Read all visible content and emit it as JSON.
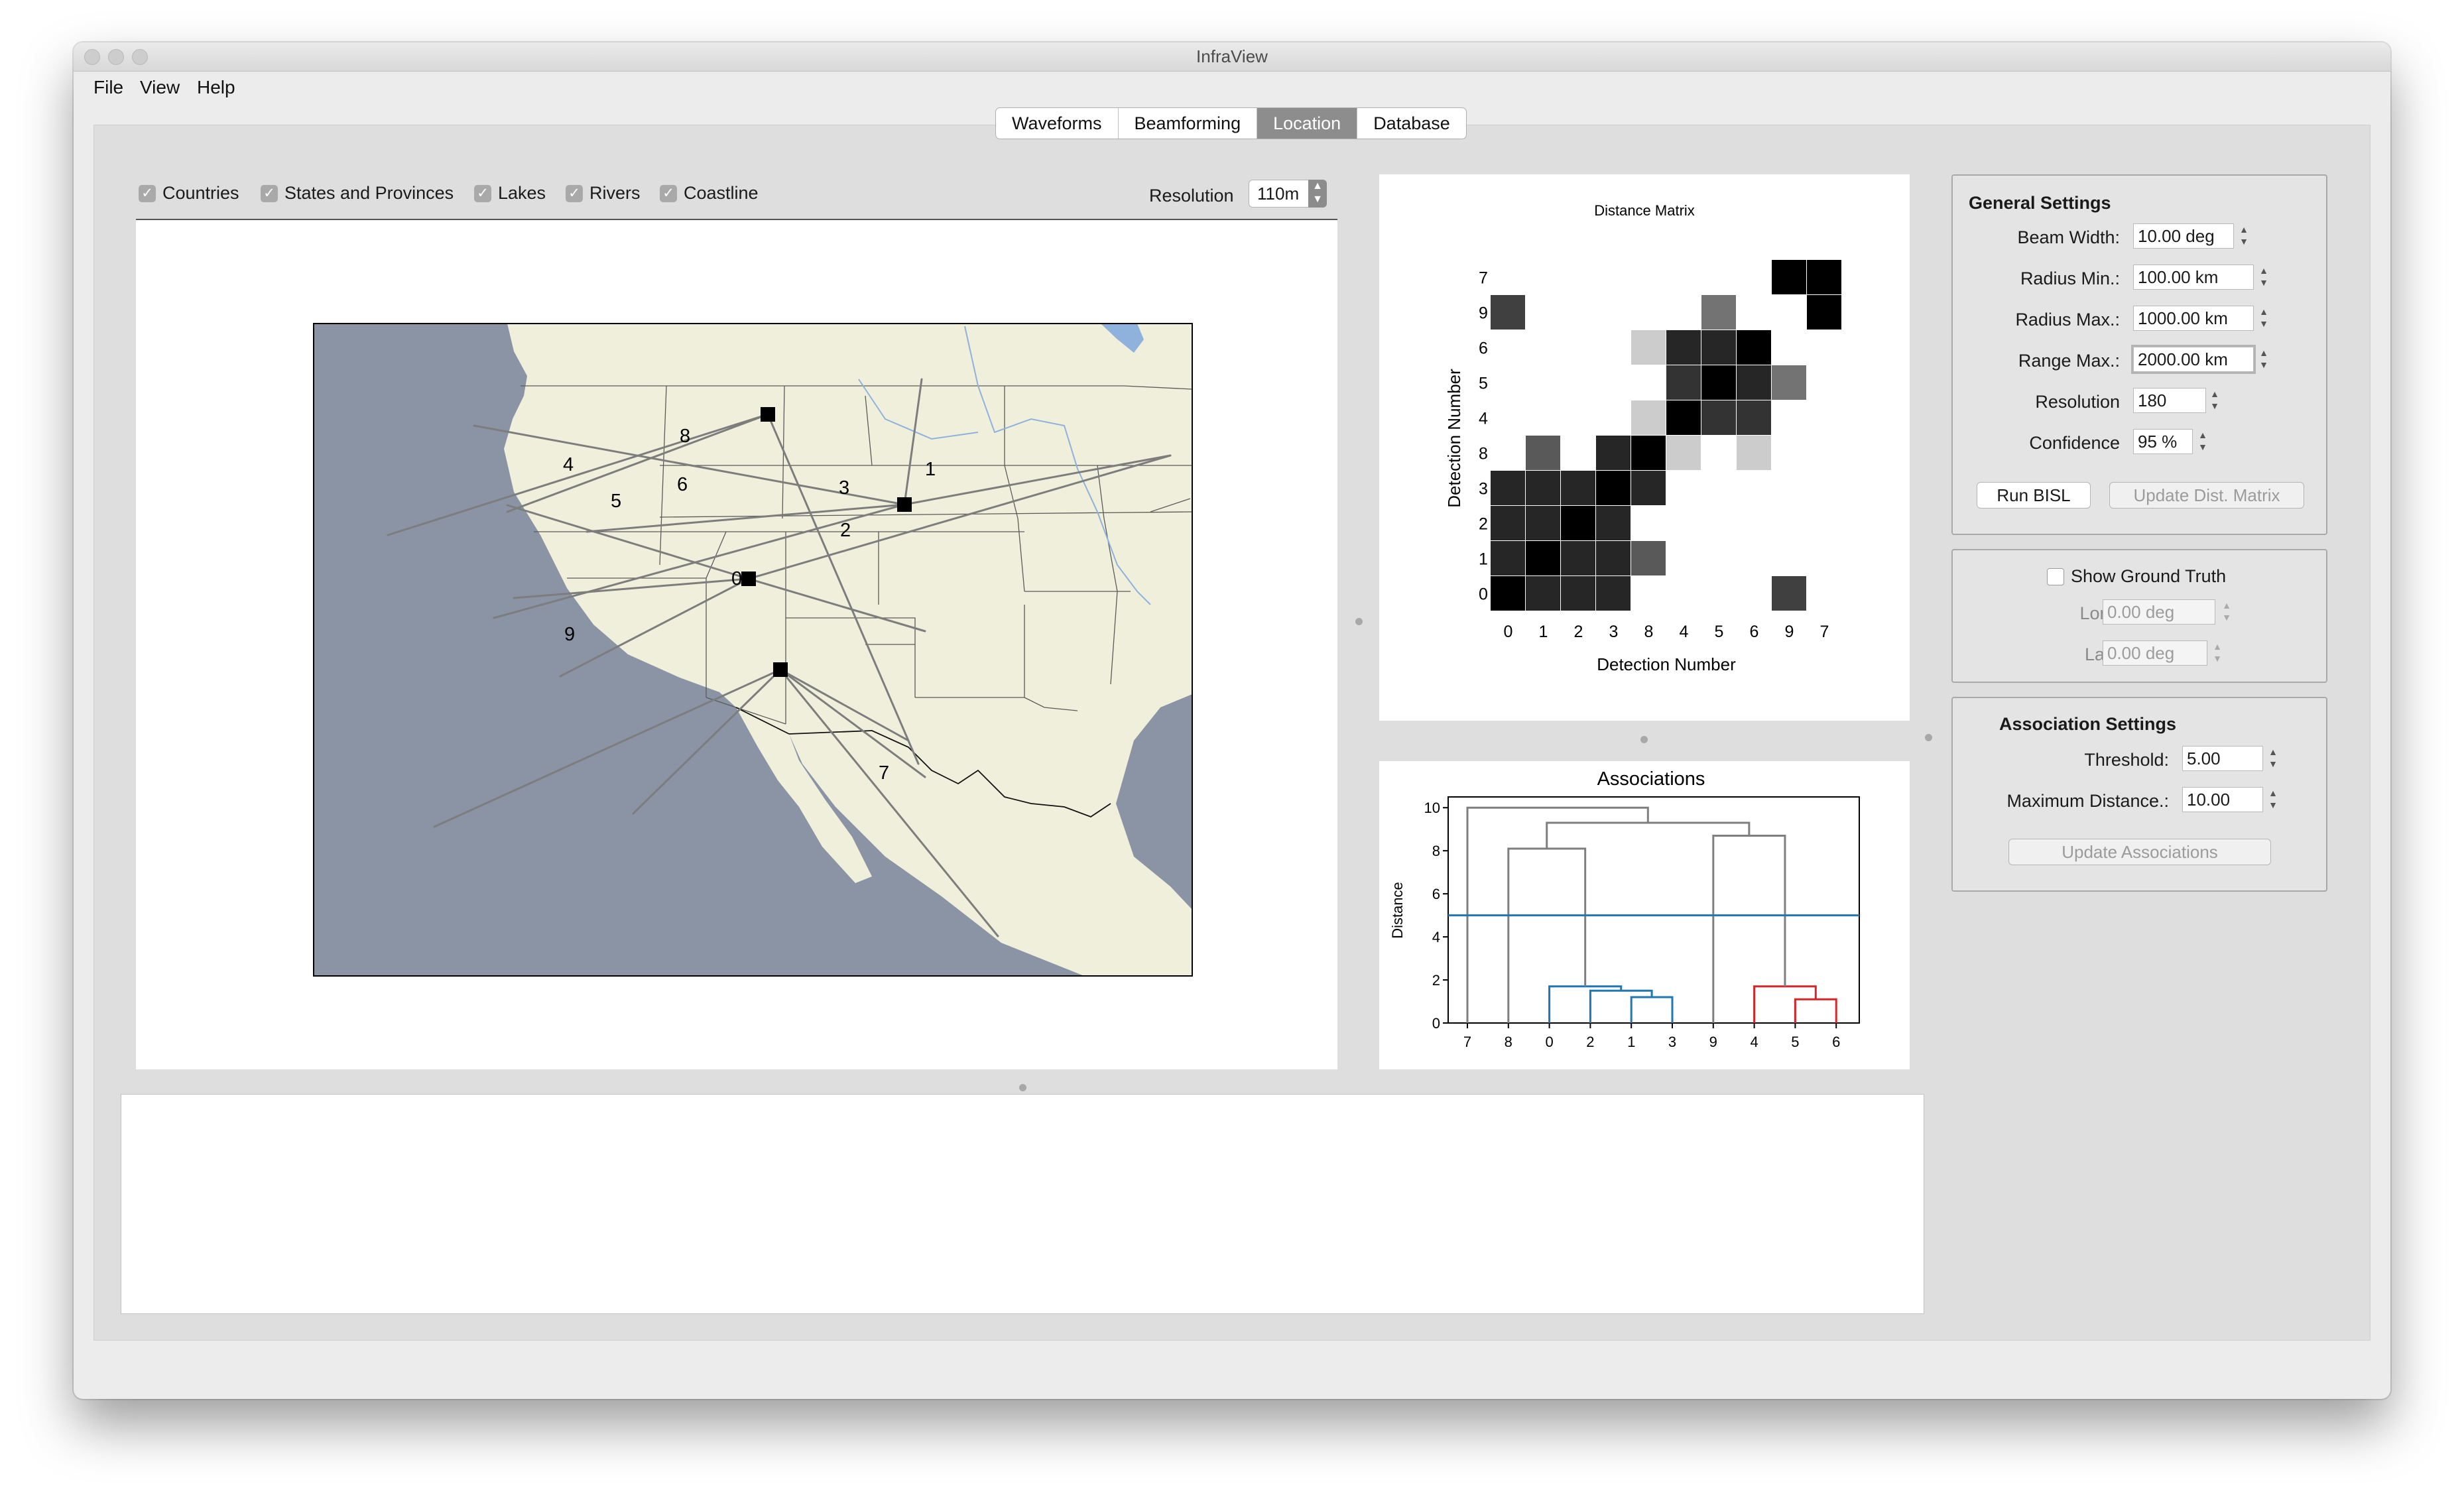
{
  "window": {
    "title": "InfraView"
  },
  "menu": [
    "File",
    "View",
    "Help"
  ],
  "tabs": [
    {
      "label": "Waveforms",
      "active": false
    },
    {
      "label": "Beamforming",
      "active": false
    },
    {
      "label": "Location",
      "active": true
    },
    {
      "label": "Database",
      "active": false
    }
  ],
  "map_toolbar": {
    "layers": [
      {
        "label": "Countries",
        "checked": true
      },
      {
        "label": "States and Provinces",
        "checked": true
      },
      {
        "label": "Lakes",
        "checked": true
      },
      {
        "label": "Rivers",
        "checked": true
      },
      {
        "label": "Coastline",
        "checked": true
      }
    ],
    "resolution_label": "Resolution",
    "resolution_value": "110m"
  },
  "map": {
    "land_color": "#efefdc",
    "ocean_color": "#8a94a4",
    "ray_color": "#7d7d7d",
    "detection_labels": [
      "1",
      "2",
      "3",
      "4",
      "5",
      "6",
      "7",
      "8",
      "9",
      "0"
    ]
  },
  "distance_matrix": {
    "title": "Distance Matrix",
    "xlabel": "Detection Number",
    "ylabel": "Detection Number",
    "order": [
      "0",
      "1",
      "2",
      "3",
      "8",
      "4",
      "5",
      "6",
      "9",
      "7"
    ],
    "values": [
      [
        0.0,
        0.15,
        0.15,
        0.15,
        1,
        1,
        1,
        1,
        0.25,
        1
      ],
      [
        0.15,
        0.0,
        0.15,
        0.15,
        0.35,
        1,
        1,
        1,
        1,
        1
      ],
      [
        0.15,
        0.15,
        0.0,
        0.15,
        1,
        1,
        1,
        1,
        1,
        1
      ],
      [
        0.15,
        0.15,
        0.15,
        0.0,
        0.15,
        1,
        1,
        1,
        1,
        1
      ],
      [
        1,
        0.35,
        1,
        0.15,
        0.0,
        0.8,
        1,
        0.8,
        1,
        1
      ],
      [
        1,
        1,
        1,
        1,
        0.8,
        0.0,
        0.2,
        0.2,
        1,
        1
      ],
      [
        1,
        1,
        1,
        1,
        1,
        0.2,
        0.0,
        0.15,
        0.45,
        1
      ],
      [
        1,
        1,
        1,
        1,
        0.8,
        0.15,
        0.15,
        0.0,
        1,
        1
      ],
      [
        0.25,
        1,
        1,
        1,
        1,
        1,
        0.45,
        1,
        1,
        0.0
      ],
      [
        1,
        1,
        1,
        1,
        1,
        1,
        1,
        1,
        0.0,
        0.0
      ]
    ]
  },
  "chart_data": {
    "type": "dendrogram",
    "title": "Associations",
    "ylabel": "Distance",
    "leaves": [
      "7",
      "8",
      "0",
      "2",
      "1",
      "3",
      "9",
      "4",
      "5",
      "6"
    ],
    "ylim": [
      0,
      10.5
    ],
    "yticks": [
      0,
      2,
      4,
      6,
      8,
      10
    ],
    "threshold": 5.0,
    "threshold_color": "#1f77b4",
    "links": [
      {
        "a": 4,
        "b": 5,
        "ya": 0,
        "yb": 0,
        "y": 1.2,
        "color": "#1f77b4"
      },
      {
        "a": 3,
        "b": 4.5,
        "ya": 0,
        "yb": 1.2,
        "y": 1.5,
        "color": "#1f77b4"
      },
      {
        "a": 2,
        "b": 3.75,
        "ya": 0,
        "yb": 1.5,
        "y": 1.7,
        "color": "#1f77b4"
      },
      {
        "a": 8,
        "b": 9,
        "ya": 0,
        "yb": 0,
        "y": 1.1,
        "color": "#d62728"
      },
      {
        "a": 7,
        "b": 8.5,
        "ya": 0,
        "yb": 1.1,
        "y": 1.7,
        "color": "#d62728"
      },
      {
        "a": 1,
        "b": 2.875,
        "ya": 0,
        "yb": 1.7,
        "y": 8.1,
        "color": "#7f7f7f"
      },
      {
        "a": 6,
        "b": 7.75,
        "ya": 0,
        "yb": 1.7,
        "y": 8.7,
        "color": "#7f7f7f"
      },
      {
        "a": 1.9375,
        "b": 6.875,
        "ya": 8.1,
        "yb": 8.7,
        "y": 9.3,
        "color": "#7f7f7f"
      },
      {
        "a": 0,
        "b": 4.40625,
        "ya": 0,
        "yb": 9.3,
        "y": 10.0,
        "color": "#7f7f7f"
      }
    ]
  },
  "general_settings": {
    "title": "General Settings",
    "fields": [
      {
        "label": "Beam Width:",
        "value": "10.00 deg"
      },
      {
        "label": "Radius Min.:",
        "value": "100.00 km"
      },
      {
        "label": "Radius Max.:",
        "value": "1000.00 km"
      },
      {
        "label": "Range Max.:",
        "value": "2000.00 km"
      },
      {
        "label": "Resolution",
        "value": "180"
      },
      {
        "label": "Confidence",
        "value": "95 %"
      }
    ],
    "run_button": "Run BISL",
    "update_button": "Update Dist. Matrix"
  },
  "ground_truth": {
    "checkbox_label": "Show Ground Truth",
    "lon_label": "Lon:",
    "lon_value": "0.00 deg",
    "lat_label": "Lat:",
    "lat_value": "0.00 deg"
  },
  "association_settings": {
    "title": "Association Settings",
    "threshold_label": "Threshold:",
    "threshold_value": "5.00",
    "maxdist_label": "Maximum Distance.:",
    "maxdist_value": "10.00",
    "update_button": "Update Associations"
  }
}
